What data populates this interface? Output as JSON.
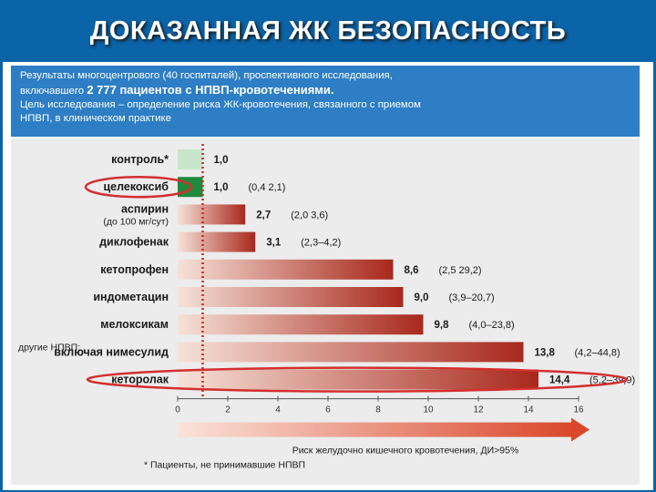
{
  "slide": {
    "title": "ДОКАЗАННАЯ ЖК БЕЗОПАСНОСТЬ",
    "header_line1": "Результаты многоцентрового (40 госпиталей), проспективного исследования,",
    "header_line2_prefix": "включавшего ",
    "header_line2_strong": "2 777 пациентов с НПВП-кровотечениями.",
    "header_line3": "Цель исследования – определение риска ЖК-кровотечения, связанного с приемом",
    "header_line4": "НПВП, в клиническом практике",
    "axis_title": "Риск желудочно кишечного кровотечения, ДИ>95%",
    "footnote": "* Пациенты, не принимавшие НПВП",
    "other_nsaid_prefix": "другие НПВП:"
  },
  "colors": {
    "slide_background": "#0b63a8",
    "header_box": "#2d7ec4",
    "control_bar": "#c8e6c9",
    "celecoxib_bar": "#1e8a3c",
    "bar_light": "#f6e2d8",
    "bar_dark": "#a8281c",
    "reference_line": "#c62828",
    "highlight_ellipse": "#d32f2f",
    "axis_arrow": "#d9472b"
  },
  "chart_data": {
    "type": "bar",
    "orientation": "horizontal",
    "categories": [
      "контроль*",
      "целекоксиб",
      "аспирин",
      "диклофенак",
      "кетопрофен",
      "индометацин",
      "мелоксикам",
      "включая нимесулид",
      "кеторолак"
    ],
    "category_sublabels": [
      "",
      "",
      "(до 100 мг/сут)",
      "",
      "",
      "",
      "",
      "",
      ""
    ],
    "values": [
      1.0,
      1.0,
      2.7,
      3.1,
      8.6,
      9.0,
      9.8,
      13.8,
      14.4
    ],
    "value_labels": [
      "1,0",
      "1,0",
      "2,7",
      "3,1",
      "8,6",
      "9,0",
      "9,8",
      "13,8",
      "14,4"
    ],
    "ci_labels": [
      "",
      "(0,4 2,1)",
      "(2,0 3,6)",
      "(2,3–4,2)",
      "(2,5 29,2)",
      "(3,9–20,7)",
      "(4,0–23,8)",
      "(4,2–44,8)",
      "(5,2–39,9)"
    ],
    "highlighted": [
      "целекоксиб",
      "кеторолак"
    ],
    "x_ticks": [
      "0",
      "2",
      "4",
      "6",
      "8",
      "10",
      "12",
      "14",
      "16"
    ],
    "xlim": [
      0,
      16
    ],
    "reference_line": 1.0,
    "xlabel": "Риск желудочно кишечного кровотечения, ДИ>95%",
    "grid": false
  }
}
